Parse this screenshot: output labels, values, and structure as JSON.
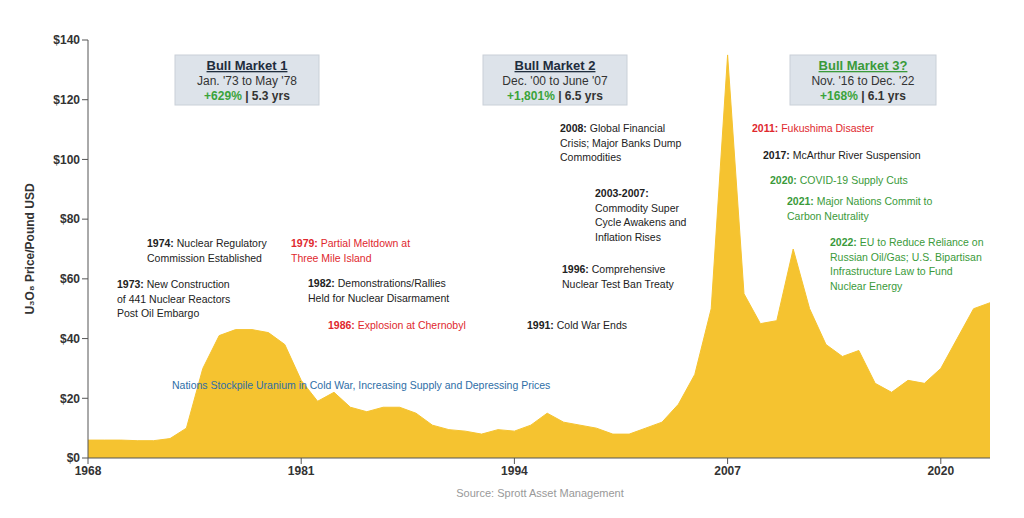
{
  "chart_data": {
    "type": "area",
    "color": "#f5c330",
    "grid": false,
    "ylabel": "U₃O₈ Price/Pound USD",
    "source": "Source: Sprott Asset Management",
    "x": [
      1968,
      1969,
      1970,
      1971,
      1972,
      1973,
      1974,
      1975,
      1976,
      1977,
      1978,
      1979,
      1980,
      1981,
      1982,
      1983,
      1984,
      1985,
      1986,
      1987,
      1988,
      1989,
      1990,
      1991,
      1992,
      1993,
      1994,
      1995,
      1996,
      1997,
      1998,
      1999,
      2000,
      2001,
      2002,
      2003,
      2004,
      2005,
      2006,
      2007,
      2008,
      2009,
      2010,
      2011,
      2012,
      2013,
      2014,
      2015,
      2016,
      2017,
      2018,
      2019,
      2020,
      2021,
      2022,
      2023
    ],
    "values": [
      6,
      6,
      6,
      5.8,
      5.8,
      6.5,
      10,
      30,
      41,
      43,
      43,
      42,
      38,
      26,
      19,
      22,
      17,
      15.5,
      17,
      17,
      15,
      11,
      9.5,
      9,
      8,
      9.5,
      9,
      11,
      15,
      12,
      11,
      10,
      8,
      8,
      10,
      12,
      18,
      28,
      50,
      135,
      55,
      45,
      46,
      70,
      50,
      38,
      34,
      36,
      25,
      22,
      26,
      25,
      30,
      40,
      50,
      52
    ],
    "xlim": [
      1968,
      2023
    ],
    "xticks": [
      1968,
      1981,
      1994,
      2007,
      2020
    ],
    "ylim": [
      0,
      140
    ],
    "yticks": [
      {
        "value": 0,
        "label": "$0"
      },
      {
        "value": 20,
        "label": "$20"
      },
      {
        "value": 40,
        "label": "$40"
      },
      {
        "value": 60,
        "label": "$60"
      },
      {
        "value": 80,
        "label": "$80"
      },
      {
        "value": 100,
        "label": "$100"
      },
      {
        "value": 120,
        "label": "$120"
      },
      {
        "value": 140,
        "label": "$140"
      }
    ],
    "boxes": [
      {
        "title": "Bull Market 1",
        "period": "Jan. '73 to May '78",
        "gain": "+629%",
        "duration": "| 5.3 yrs",
        "color": "#1f2d3d"
      },
      {
        "title": "Bull Market 2",
        "period": "Dec. '00 to June '07",
        "gain": "+1,801%",
        "duration": "| 6.5 yrs",
        "color": "#1f2d3d"
      },
      {
        "title": "Bull Market 3?",
        "period": "Nov. '16 to Dec. '22",
        "gain": "+168%",
        "duration": "| 6.1 yrs",
        "color": "#3a9a3a"
      }
    ],
    "annotations": [
      {
        "date": "1973:",
        "lines": [
          "New Construction",
          "of 441 Nuclear Reactors",
          "Post Oil Embargo"
        ],
        "color": "#222222"
      },
      {
        "date": "1974:",
        "lines": [
          "Nuclear Regulatory",
          "Commission Established"
        ],
        "color": "#222222"
      },
      {
        "date": "1979:",
        "lines": [
          "Partial Meltdown at",
          "Three Mile Island"
        ],
        "color": "#e0282e"
      },
      {
        "date": "1982:",
        "lines": [
          "Demonstrations/Rallies",
          "Held for Nuclear Disarmament"
        ],
        "color": "#222222"
      },
      {
        "date": "1986:",
        "lines": [
          "Explosion at Chernobyl"
        ],
        "color": "#e0282e"
      },
      {
        "lines": [
          "Nations Stockpile Uranium in Cold War, Increasing Supply and Depressing Prices"
        ],
        "color": "#2e6ea6"
      },
      {
        "date": "1991:",
        "lines": [
          "Cold War Ends"
        ],
        "color": "#222222"
      },
      {
        "date": "1996:",
        "lines": [
          "Comprehensive",
          "Nuclear Test Ban Treaty"
        ],
        "color": "#222222"
      },
      {
        "date": "2003-2007:",
        "lines": [
          "Commodity Super",
          "Cycle Awakens and",
          "Inflation Rises"
        ],
        "color": "#222222"
      },
      {
        "date": "2008:",
        "lines": [
          "Global Financial",
          "Crisis; Major Banks Dump",
          "Commodities"
        ],
        "color": "#222222"
      },
      {
        "date": "2011:",
        "lines": [
          "Fukushima Disaster"
        ],
        "color": "#e0282e"
      },
      {
        "date": "2017:",
        "lines": [
          "McArthur River Suspension"
        ],
        "color": "#222222"
      },
      {
        "date": "2020:",
        "lines": [
          "COVID-19 Supply Cuts"
        ],
        "color": "#3a9a3a"
      },
      {
        "date": "2021:",
        "lines": [
          "Major Nations Commit to",
          "Carbon Neutrality"
        ],
        "color": "#3a9a3a"
      },
      {
        "date": "2022:",
        "lines": [
          "EU to Reduce Reliance on",
          "Russian Oil/Gas; U.S. Bipartisan",
          "Infrastructure Law to Fund",
          "Nuclear Energy"
        ],
        "color": "#3a9a3a"
      }
    ]
  }
}
